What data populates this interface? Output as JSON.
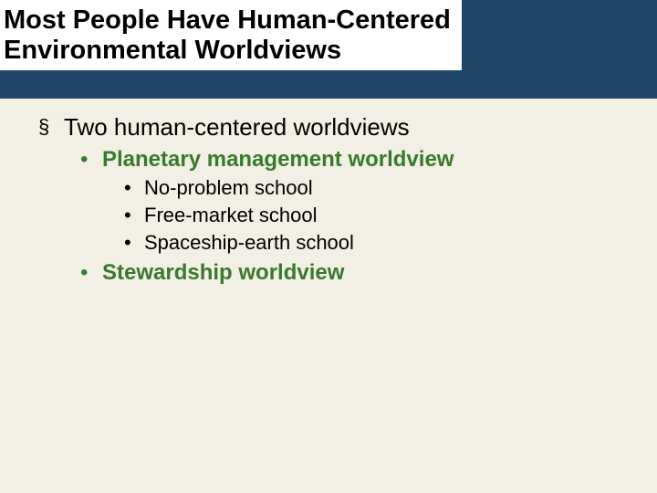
{
  "colors": {
    "header_band": "#1f4568",
    "slide_bg": "#f2f0e4",
    "title_bg": "#ffffff",
    "title_text": "#000000",
    "body_text": "#000000",
    "accent_green": "#3a7a2c"
  },
  "title": {
    "line1": "Most People Have Human-Centered",
    "line2": "Environmental Worldviews"
  },
  "bullets": {
    "lvl1": {
      "marker": "§",
      "text": "Two human-centered worldviews"
    },
    "lvl2a": {
      "marker": "•",
      "text": "Planetary management worldview"
    },
    "lvl3a": {
      "marker": "•",
      "text": "No-problem school"
    },
    "lvl3b": {
      "marker": "•",
      "text": "Free-market school"
    },
    "lvl3c": {
      "marker": "•",
      "text": "Spaceship-earth school"
    },
    "lvl2b": {
      "marker": "•",
      "text": "Stewardship worldview"
    }
  }
}
